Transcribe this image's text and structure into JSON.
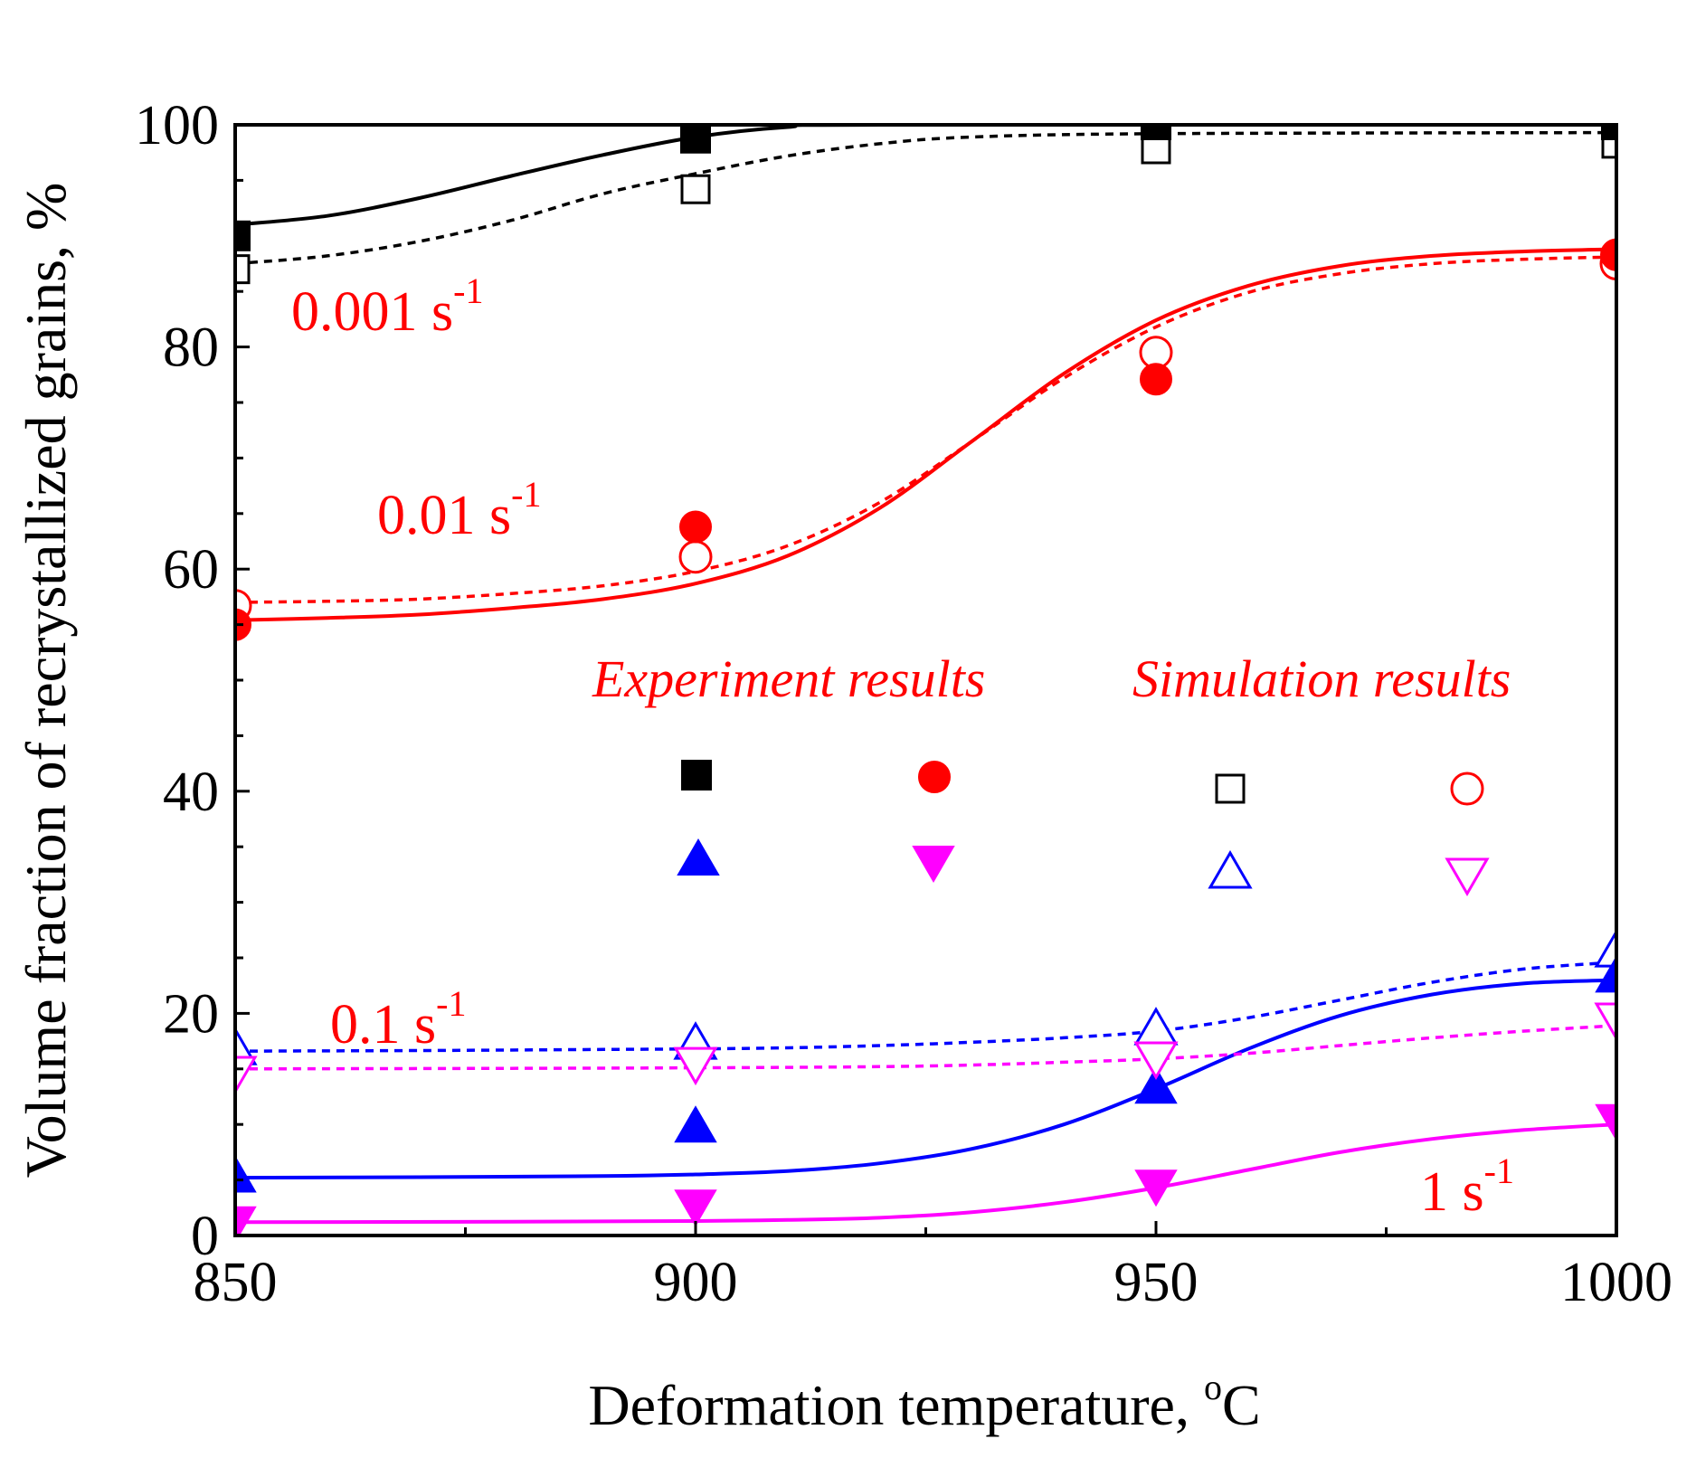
{
  "chart_data": {
    "type": "scatter",
    "xlabel": "Deformation temperature, ",
    "xlabel_sup": "o",
    "xlabel_unit": "C",
    "ylabel": "Volume fraction of recrystallized grains, %",
    "xlim": [
      850,
      1000
    ],
    "ylim": [
      0,
      100
    ],
    "x_ticks": [
      850,
      900,
      950,
      1000
    ],
    "y_ticks": [
      0,
      20,
      40,
      60,
      80,
      100
    ],
    "legend": {
      "experiment_heading": "Experiment results",
      "simulation_heading": "Simulation results"
    },
    "series": [
      {
        "name": "0.001 s-1",
        "label_base": "0.001 s",
        "label_sup": "-1",
        "color": "#000000",
        "marker": "square",
        "experiment": [
          [
            850,
            90
          ],
          [
            900,
            98.8
          ],
          [
            950,
            100
          ],
          [
            1000,
            100
          ]
        ],
        "simulation": [
          [
            850,
            87
          ],
          [
            900,
            94.2
          ],
          [
            950,
            97.8
          ],
          [
            1000,
            98.3
          ]
        ],
        "exp_fit": [
          [
            850,
            91
          ],
          [
            860,
            91.8
          ],
          [
            870,
            93.4
          ],
          [
            880,
            95.4
          ],
          [
            890,
            97.3
          ],
          [
            900,
            98.9
          ],
          [
            910,
            99.8
          ],
          [
            920,
            100
          ],
          [
            1000,
            100
          ]
        ],
        "sim_fit": [
          [
            850,
            87.5
          ],
          [
            860,
            88.2
          ],
          [
            870,
            89.5
          ],
          [
            880,
            91.4
          ],
          [
            890,
            93.8
          ],
          [
            900,
            95.6
          ],
          [
            910,
            97.2
          ],
          [
            920,
            98.3
          ],
          [
            930,
            98.9
          ],
          [
            950,
            99.2
          ],
          [
            1000,
            99.3
          ]
        ]
      },
      {
        "name": "0.01 s-1",
        "label_base": "0.01 s",
        "label_sup": "-1",
        "color": "#ff0000",
        "marker": "circle",
        "experiment": [
          [
            850,
            55
          ],
          [
            900,
            63.8
          ],
          [
            950,
            77.1
          ],
          [
            1000,
            88.3
          ]
        ],
        "simulation": [
          [
            850,
            56.7
          ],
          [
            900,
            61.1
          ],
          [
            950,
            79.5
          ],
          [
            1000,
            87.5
          ]
        ],
        "exp_fit": [
          [
            850,
            55.4
          ],
          [
            860,
            55.6
          ],
          [
            870,
            55.9
          ],
          [
            880,
            56.5
          ],
          [
            890,
            57.3
          ],
          [
            900,
            58.7
          ],
          [
            910,
            61.2
          ],
          [
            920,
            65.5
          ],
          [
            930,
            71.5
          ],
          [
            940,
            77.6
          ],
          [
            950,
            82.4
          ],
          [
            960,
            85.5
          ],
          [
            970,
            87.3
          ],
          [
            980,
            88.2
          ],
          [
            990,
            88.6
          ],
          [
            1000,
            88.8
          ]
        ],
        "sim_fit": [
          [
            850,
            57
          ],
          [
            860,
            57.1
          ],
          [
            870,
            57.3
          ],
          [
            880,
            57.8
          ],
          [
            890,
            58.5
          ],
          [
            900,
            59.8
          ],
          [
            910,
            62.1
          ],
          [
            920,
            66
          ],
          [
            930,
            71.5
          ],
          [
            940,
            77.2
          ],
          [
            950,
            81.8
          ],
          [
            960,
            84.9
          ],
          [
            970,
            86.6
          ],
          [
            980,
            87.5
          ],
          [
            990,
            87.9
          ],
          [
            1000,
            88.1
          ]
        ]
      },
      {
        "name": "0.1 s-1",
        "label_base": "0.1 s",
        "label_sup": "-1",
        "color": "#0000ff",
        "marker": "triangle-up",
        "experiment": [
          [
            850,
            5.5
          ],
          [
            900,
            10
          ],
          [
            950,
            13.5
          ],
          [
            1000,
            23.5
          ]
        ],
        "simulation": [
          [
            850,
            17
          ],
          [
            900,
            17.5
          ],
          [
            950,
            18.8
          ],
          [
            1000,
            25.8
          ]
        ],
        "exp_fit": [
          [
            850,
            5.2
          ],
          [
            870,
            5.25
          ],
          [
            890,
            5.35
          ],
          [
            900,
            5.5
          ],
          [
            910,
            5.8
          ],
          [
            920,
            6.5
          ],
          [
            930,
            7.8
          ],
          [
            940,
            10
          ],
          [
            950,
            13.2
          ],
          [
            960,
            16.8
          ],
          [
            970,
            19.8
          ],
          [
            980,
            21.7
          ],
          [
            990,
            22.7
          ],
          [
            1000,
            23
          ]
        ],
        "sim_fit": [
          [
            850,
            16.6
          ],
          [
            870,
            16.65
          ],
          [
            890,
            16.75
          ],
          [
            900,
            16.8
          ],
          [
            910,
            16.9
          ],
          [
            920,
            17.1
          ],
          [
            930,
            17.4
          ],
          [
            940,
            17.8
          ],
          [
            950,
            18.4
          ],
          [
            960,
            19.6
          ],
          [
            970,
            21.2
          ],
          [
            980,
            22.8
          ],
          [
            990,
            24
          ],
          [
            1000,
            24.6
          ]
        ]
      },
      {
        "name": "1 s-1",
        "label_base": "1 s",
        "label_sup": "-1",
        "color": "#ff00ff",
        "marker": "triangle-down",
        "experiment": [
          [
            850,
            1
          ],
          [
            900,
            2.5
          ],
          [
            950,
            4.3
          ],
          [
            1000,
            10.2
          ]
        ],
        "simulation": [
          [
            850,
            14.5
          ],
          [
            900,
            15.3
          ],
          [
            950,
            15.8
          ],
          [
            1000,
            19.3
          ]
        ],
        "exp_fit": [
          [
            850,
            1.2
          ],
          [
            880,
            1.25
          ],
          [
            900,
            1.3
          ],
          [
            910,
            1.4
          ],
          [
            920,
            1.6
          ],
          [
            930,
            2.1
          ],
          [
            940,
            3
          ],
          [
            950,
            4.3
          ],
          [
            960,
            5.9
          ],
          [
            970,
            7.5
          ],
          [
            980,
            8.7
          ],
          [
            990,
            9.5
          ],
          [
            1000,
            10
          ]
        ],
        "sim_fit": [
          [
            850,
            15
          ],
          [
            880,
            15.05
          ],
          [
            900,
            15.1
          ],
          [
            920,
            15.2
          ],
          [
            930,
            15.35
          ],
          [
            940,
            15.6
          ],
          [
            950,
            15.9
          ],
          [
            960,
            16.4
          ],
          [
            970,
            17.1
          ],
          [
            980,
            17.8
          ],
          [
            990,
            18.4
          ],
          [
            1000,
            18.9
          ]
        ]
      }
    ]
  }
}
